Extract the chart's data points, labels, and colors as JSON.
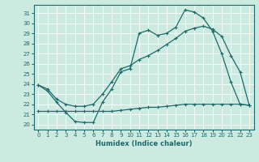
{
  "xlabel": "Humidex (Indice chaleur)",
  "bg_color": "#cceae0",
  "line_color": "#1a6b6b",
  "grid_color": "#ffffff",
  "xlim": [
    -0.5,
    23.5
  ],
  "ylim": [
    19.5,
    31.8
  ],
  "x_ticks": [
    0,
    1,
    2,
    3,
    4,
    5,
    6,
    7,
    8,
    9,
    10,
    11,
    12,
    13,
    14,
    15,
    16,
    17,
    18,
    19,
    20,
    21,
    22,
    23
  ],
  "y_ticks": [
    20,
    21,
    22,
    23,
    24,
    25,
    26,
    27,
    28,
    29,
    30,
    31
  ],
  "line1_x": [
    0,
    1,
    2,
    3,
    4,
    5,
    6,
    7,
    8,
    9,
    10,
    11,
    12,
    13,
    14,
    15,
    16,
    17,
    18,
    19,
    20,
    21,
    22,
    23
  ],
  "line1_y": [
    23.9,
    23.3,
    22.2,
    21.2,
    20.3,
    20.2,
    20.2,
    22.2,
    23.5,
    25.2,
    25.5,
    29.0,
    29.3,
    28.8,
    29.0,
    29.6,
    31.3,
    31.1,
    30.5,
    29.2,
    27.0,
    24.2,
    22.0,
    21.9
  ],
  "line2_x": [
    0,
    1,
    2,
    3,
    4,
    5,
    6,
    7,
    8,
    9,
    10,
    11,
    12,
    13,
    14,
    15,
    16,
    17,
    18,
    19,
    20,
    21,
    22,
    23
  ],
  "line2_y": [
    23.9,
    23.5,
    22.5,
    22.0,
    21.8,
    21.8,
    22.0,
    23.0,
    24.2,
    25.5,
    25.8,
    26.4,
    26.8,
    27.3,
    27.9,
    28.5,
    29.2,
    29.5,
    29.7,
    29.4,
    28.7,
    26.8,
    25.2,
    21.9
  ],
  "line3_x": [
    0,
    1,
    2,
    3,
    4,
    5,
    6,
    7,
    8,
    9,
    10,
    11,
    12,
    13,
    14,
    15,
    16,
    17,
    18,
    19,
    20,
    21,
    22,
    23
  ],
  "line3_y": [
    21.3,
    21.3,
    21.3,
    21.3,
    21.3,
    21.3,
    21.3,
    21.3,
    21.3,
    21.4,
    21.5,
    21.6,
    21.7,
    21.7,
    21.8,
    21.9,
    22.0,
    22.0,
    22.0,
    22.0,
    22.0,
    22.0,
    22.0,
    21.9
  ]
}
